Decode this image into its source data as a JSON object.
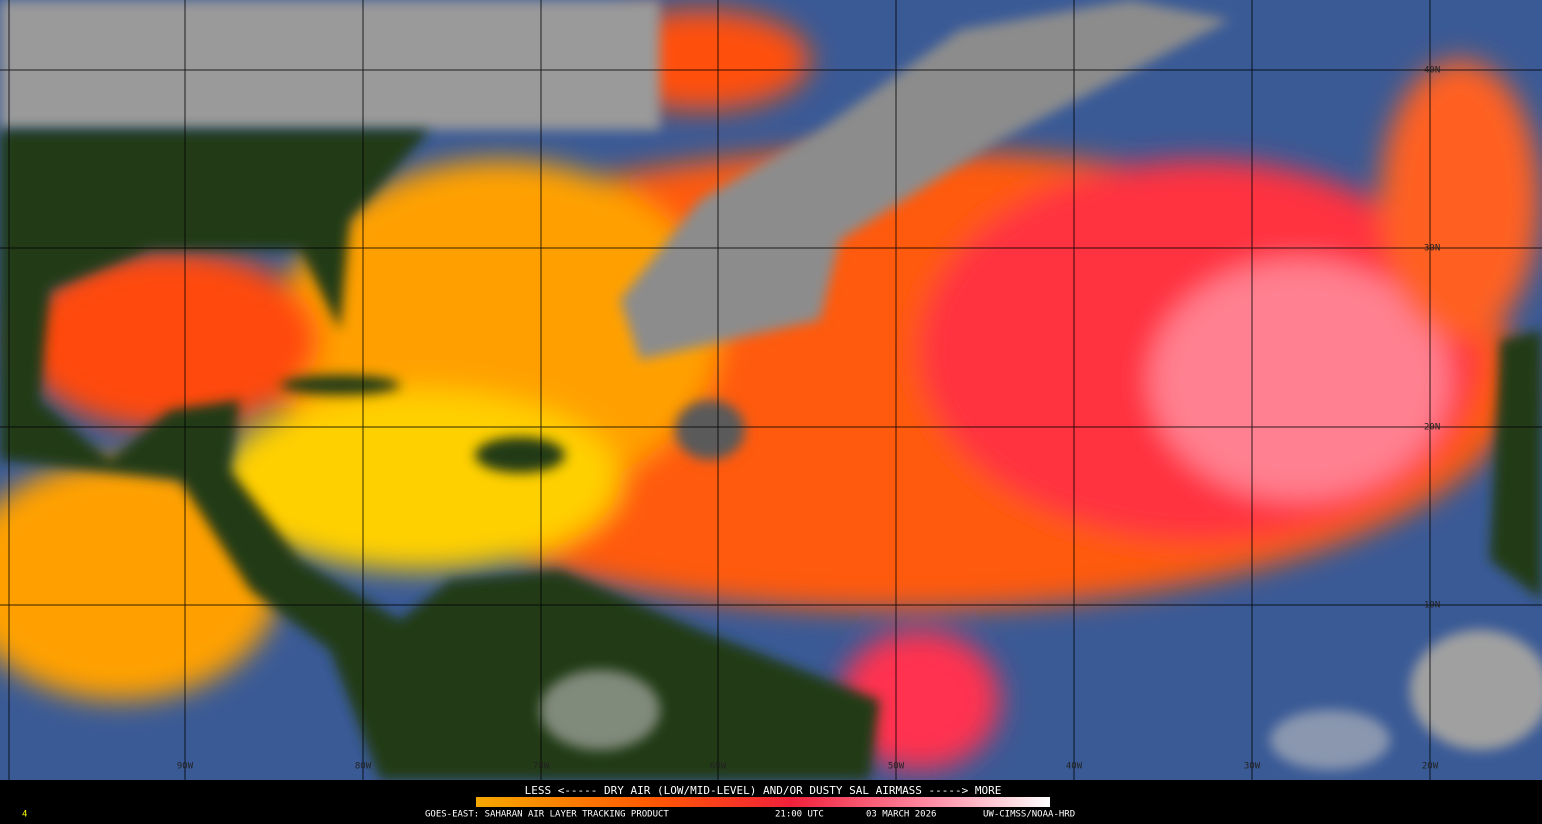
{
  "map": {
    "latitude_labels": [
      "40N",
      "30N",
      "20N",
      "10N"
    ],
    "longitude_labels": [
      "90W",
      "80W",
      "70W",
      "60W",
      "50W",
      "40W",
      "30W",
      "20W"
    ]
  },
  "legend": {
    "caption": "LESS <----- DRY AIR (LOW/MID-LEVEL) AND/OR DUSTY SAL AIRMASS -----> MORE"
  },
  "footer": {
    "corner": "4",
    "product": "GOES-EAST: SAHARAN AIR LAYER TRACKING PRODUCT",
    "time": "21:00 UTC",
    "date": "03 MARCH 2026",
    "credit": "UW-CIMSS/NOAA-HRD"
  }
}
